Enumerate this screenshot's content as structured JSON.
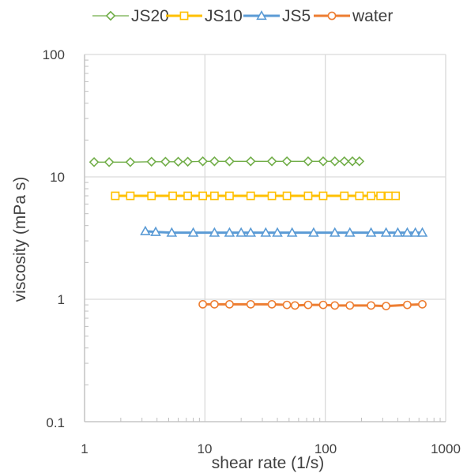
{
  "chart_data": {
    "type": "scatter",
    "xscale": "log",
    "yscale": "log",
    "xlim": [
      1,
      1000
    ],
    "ylim": [
      0.1,
      100
    ],
    "xlabel": "shear rate (1/s)",
    "ylabel": "viscosity (mPa s)",
    "xticks": [
      "1",
      "10",
      "100",
      "1000"
    ],
    "yticks": [
      "0.1",
      "1",
      "10",
      "100"
    ],
    "grid": true,
    "legend_position": "top",
    "series": [
      {
        "name": "JS20",
        "color": "#70AD47",
        "marker": "diamond",
        "line": "thin",
        "points": [
          [
            1.2,
            13.2
          ],
          [
            1.6,
            13.2
          ],
          [
            2.4,
            13.2
          ],
          [
            3.6,
            13.3
          ],
          [
            4.7,
            13.3
          ],
          [
            6.0,
            13.3
          ],
          [
            7.2,
            13.3
          ],
          [
            9.6,
            13.4
          ],
          [
            12.0,
            13.4
          ],
          [
            16.0,
            13.4
          ],
          [
            24.0,
            13.4
          ],
          [
            36.0,
            13.4
          ],
          [
            48.0,
            13.4
          ],
          [
            72.0,
            13.4
          ],
          [
            96.0,
            13.4
          ],
          [
            120,
            13.4
          ],
          [
            144,
            13.4
          ],
          [
            168,
            13.4
          ],
          [
            192,
            13.4
          ]
        ]
      },
      {
        "name": "JS10",
        "color": "#FFC000",
        "marker": "square",
        "line": "thick",
        "points": [
          [
            1.8,
            7.0
          ],
          [
            2.4,
            7.0
          ],
          [
            3.6,
            7.0
          ],
          [
            5.4,
            7.0
          ],
          [
            7.2,
            7.0
          ],
          [
            9.6,
            7.0
          ],
          [
            12.0,
            7.0
          ],
          [
            16.0,
            7.0
          ],
          [
            24.0,
            7.0
          ],
          [
            36.0,
            7.0
          ],
          [
            48.0,
            7.0
          ],
          [
            72.0,
            7.0
          ],
          [
            96.0,
            7.0
          ],
          [
            144,
            7.0
          ],
          [
            192,
            7.0
          ],
          [
            240,
            7.0
          ],
          [
            288,
            7.0
          ],
          [
            336,
            7.0
          ],
          [
            384,
            7.0
          ]
        ]
      },
      {
        "name": "JS5",
        "color": "#5B9BD5",
        "marker": "triangle",
        "line": "thick",
        "points": [
          [
            3.2,
            3.6
          ],
          [
            3.9,
            3.55
          ],
          [
            5.3,
            3.5
          ],
          [
            8.0,
            3.5
          ],
          [
            12.0,
            3.5
          ],
          [
            16.0,
            3.5
          ],
          [
            20.0,
            3.5
          ],
          [
            24.0,
            3.5
          ],
          [
            32.0,
            3.5
          ],
          [
            40.0,
            3.5
          ],
          [
            53.0,
            3.5
          ],
          [
            80.0,
            3.5
          ],
          [
            120,
            3.5
          ],
          [
            160,
            3.5
          ],
          [
            240,
            3.5
          ],
          [
            320,
            3.5
          ],
          [
            400,
            3.5
          ],
          [
            480,
            3.5
          ],
          [
            560,
            3.5
          ],
          [
            640,
            3.5
          ]
        ]
      },
      {
        "name": "water",
        "color": "#ED7D31",
        "marker": "circle",
        "line": "thick",
        "points": [
          [
            9.6,
            0.91
          ],
          [
            12.0,
            0.91
          ],
          [
            16.0,
            0.91
          ],
          [
            24.0,
            0.91
          ],
          [
            36.0,
            0.91
          ],
          [
            48.0,
            0.9
          ],
          [
            56.0,
            0.89
          ],
          [
            72.0,
            0.9
          ],
          [
            96.0,
            0.9
          ],
          [
            120,
            0.89
          ],
          [
            160,
            0.89
          ],
          [
            240,
            0.89
          ],
          [
            320,
            0.88
          ],
          [
            480,
            0.9
          ],
          [
            640,
            0.91
          ]
        ]
      }
    ]
  }
}
